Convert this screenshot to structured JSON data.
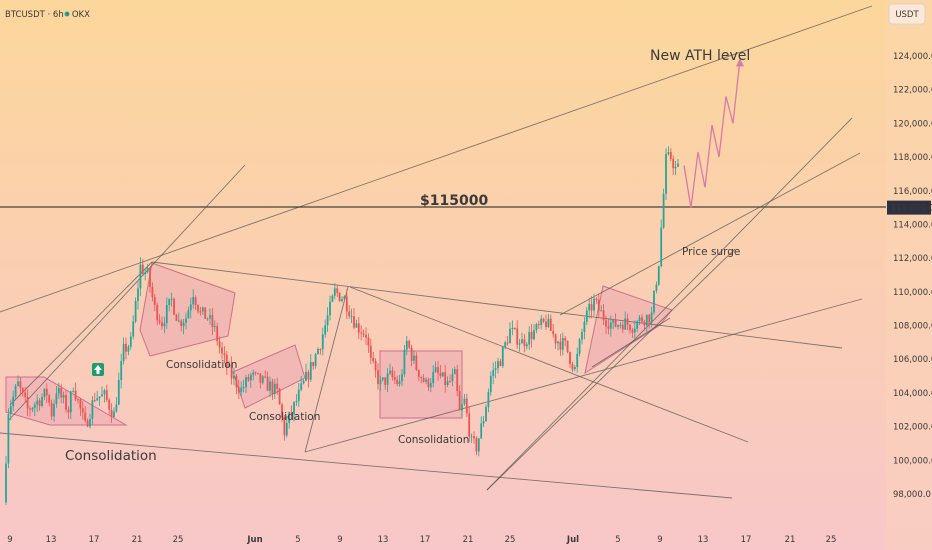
{
  "header": {
    "symbol_label": "BTCUSDT · 6h · OKX",
    "currency_badge": "USDT",
    "status_dot_color": "#26a69a"
  },
  "chart_data": {
    "type": "candlestick",
    "title": "",
    "y_unit": "USDT",
    "ylim": [
      97000,
      126000
    ],
    "y_ticks": [
      "124,000.0",
      "122,000.0",
      "120,000.0",
      "118,000.0",
      "116,000.0",
      "114,000.0",
      "112,000.0",
      "110,000.0",
      "108,000.0",
      "106,000.0",
      "104,000.0",
      "102,000.0",
      "100,000.0",
      "98,000.0"
    ],
    "x_ticks": [
      "9",
      "13",
      "17",
      "21",
      "25",
      "Jun",
      "5",
      "9",
      "13",
      "17",
      "21",
      "25",
      "Jul",
      "5",
      "9",
      "13",
      "17",
      "21",
      "25"
    ],
    "last_price_label": "115,000.0",
    "level_label": "$115000",
    "annotations": [
      "Consolidation",
      "Consolidation",
      "Consolidation",
      "Consolidation",
      "Price surge",
      "New ATH level"
    ],
    "colors": {
      "up": "#26a69a",
      "down": "#ef5350",
      "projection": "#d97aa8",
      "box_fill": "#e8a0b0",
      "box_stroke": "#d06f8b",
      "trendline": "#555555",
      "background_top": "#fcd79b",
      "background_bottom": "#f8c7c9"
    },
    "ohlc_keyframes": [
      {
        "t": 0,
        "price": 97500
      },
      {
        "t": 2,
        "price": 103000
      },
      {
        "t": 6,
        "price": 104500
      },
      {
        "t": 10,
        "price": 103000
      },
      {
        "t": 14,
        "price": 103500
      },
      {
        "t": 18,
        "price": 104000
      },
      {
        "t": 20,
        "price": 102800
      },
      {
        "t": 22,
        "price": 104200
      },
      {
        "t": 27,
        "price": 103000
      },
      {
        "t": 29,
        "price": 104500
      },
      {
        "t": 34,
        "price": 102000
      },
      {
        "t": 38,
        "price": 103800
      },
      {
        "t": 42,
        "price": 103800
      },
      {
        "t": 46,
        "price": 102700
      },
      {
        "t": 50,
        "price": 106500
      },
      {
        "t": 53,
        "price": 107000
      },
      {
        "t": 57,
        "price": 111500
      },
      {
        "t": 60,
        "price": 111000
      },
      {
        "t": 63,
        "price": 109000
      },
      {
        "t": 66,
        "price": 108200
      },
      {
        "t": 70,
        "price": 109500
      },
      {
        "t": 73,
        "price": 108200
      },
      {
        "t": 76,
        "price": 108500
      },
      {
        "t": 79,
        "price": 110000
      },
      {
        "t": 82,
        "price": 108700
      },
      {
        "t": 85,
        "price": 108500
      },
      {
        "t": 88,
        "price": 107700
      },
      {
        "t": 91,
        "price": 106200
      },
      {
        "t": 95,
        "price": 105000
      },
      {
        "t": 99,
        "price": 104200
      },
      {
        "t": 103,
        "price": 105000
      },
      {
        "t": 107,
        "price": 104700
      },
      {
        "t": 111,
        "price": 104400
      },
      {
        "t": 114,
        "price": 104000
      },
      {
        "t": 117,
        "price": 101700
      },
      {
        "t": 119,
        "price": 102500
      },
      {
        "t": 124,
        "price": 104200
      },
      {
        "t": 128,
        "price": 105500
      },
      {
        "t": 132,
        "price": 107000
      },
      {
        "t": 135,
        "price": 108500
      },
      {
        "t": 138,
        "price": 110000
      },
      {
        "t": 142,
        "price": 109600
      },
      {
        "t": 147,
        "price": 108000
      },
      {
        "t": 151,
        "price": 107500
      },
      {
        "t": 153,
        "price": 105800
      },
      {
        "t": 157,
        "price": 104500
      },
      {
        "t": 161,
        "price": 105000
      },
      {
        "t": 165,
        "price": 104500
      },
      {
        "t": 168,
        "price": 107000
      },
      {
        "t": 172,
        "price": 105500
      },
      {
        "t": 176,
        "price": 104500
      },
      {
        "t": 180,
        "price": 105200
      },
      {
        "t": 185,
        "price": 104500
      },
      {
        "t": 188,
        "price": 105000
      },
      {
        "t": 190,
        "price": 102800
      },
      {
        "t": 192,
        "price": 103500
      },
      {
        "t": 195,
        "price": 101000
      },
      {
        "t": 197,
        "price": 100800
      },
      {
        "t": 200,
        "price": 102500
      },
      {
        "t": 203,
        "price": 105000
      },
      {
        "t": 207,
        "price": 106000
      },
      {
        "t": 211,
        "price": 107700
      },
      {
        "t": 216,
        "price": 107000
      },
      {
        "t": 220,
        "price": 107500
      },
      {
        "t": 226,
        "price": 108200
      },
      {
        "t": 230,
        "price": 107200
      },
      {
        "t": 234,
        "price": 106800
      },
      {
        "t": 238,
        "price": 105400
      },
      {
        "t": 242,
        "price": 108300
      },
      {
        "t": 246,
        "price": 109400
      },
      {
        "t": 250,
        "price": 108500
      },
      {
        "t": 254,
        "price": 108000
      },
      {
        "t": 258,
        "price": 108200
      },
      {
        "t": 262,
        "price": 108000
      },
      {
        "t": 266,
        "price": 108400
      },
      {
        "t": 270,
        "price": 108600
      },
      {
        "t": 273,
        "price": 111800
      },
      {
        "t": 276,
        "price": 117800
      },
      {
        "t": 278,
        "price": 118000
      },
      {
        "t": 280,
        "price": 117300
      }
    ],
    "projection_path": [
      117500,
      115000,
      118300,
      116200,
      119900,
      118000,
      121600,
      120000,
      123800
    ]
  }
}
